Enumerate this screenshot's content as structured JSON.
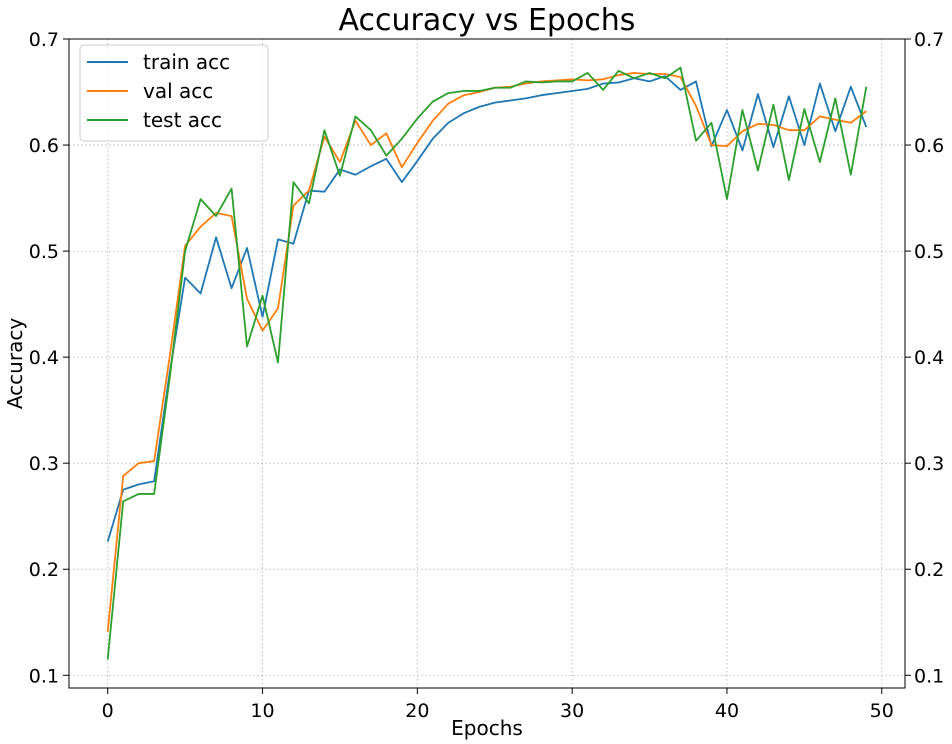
{
  "chart_data": {
    "type": "line",
    "title": "Accuracy vs Epochs",
    "xlabel": "Epochs",
    "ylabel": "Accuracy",
    "xlim": [
      -2.5,
      51.5
    ],
    "ylim": [
      0.088,
      0.7
    ],
    "xticks": [
      0,
      10,
      20,
      30,
      40,
      50
    ],
    "yticks": [
      0.1,
      0.2,
      0.3,
      0.4,
      0.5,
      0.6,
      0.7
    ],
    "xtick_labels": [
      "0",
      "10",
      "20",
      "30",
      "40",
      "50"
    ],
    "ytick_labels": [
      "0.1",
      "0.2",
      "0.3",
      "0.4",
      "0.5",
      "0.6",
      "0.7"
    ],
    "grid": true,
    "legend_position": "top-left",
    "x": [
      0,
      1,
      2,
      3,
      4,
      5,
      6,
      7,
      8,
      9,
      10,
      11,
      12,
      13,
      14,
      15,
      16,
      17,
      18,
      19,
      20,
      21,
      22,
      23,
      24,
      25,
      26,
      27,
      28,
      29,
      30,
      31,
      32,
      33,
      34,
      35,
      36,
      37,
      38,
      39,
      40,
      41,
      42,
      43,
      44,
      45,
      46,
      47,
      48,
      49
    ],
    "series": [
      {
        "name": "train acc",
        "color": "#1f77b4",
        "values": [
          0.226,
          0.275,
          0.28,
          0.283,
          0.385,
          0.475,
          0.46,
          0.513,
          0.465,
          0.503,
          0.438,
          0.511,
          0.507,
          0.557,
          0.556,
          0.577,
          0.572,
          0.58,
          0.587,
          0.565,
          0.585,
          0.606,
          0.621,
          0.63,
          0.636,
          0.64,
          0.642,
          0.644,
          0.647,
          0.649,
          0.651,
          0.653,
          0.658,
          0.659,
          0.663,
          0.66,
          0.665,
          0.652,
          0.66,
          0.599,
          0.633,
          0.595,
          0.648,
          0.598,
          0.646,
          0.6,
          0.658,
          0.613,
          0.655,
          0.617
        ]
      },
      {
        "name": "val acc",
        "color": "#ff7f0e",
        "values": [
          0.141,
          0.288,
          0.3,
          0.302,
          0.4,
          0.505,
          0.523,
          0.536,
          0.533,
          0.455,
          0.425,
          0.446,
          0.543,
          0.557,
          0.608,
          0.584,
          0.623,
          0.6,
          0.611,
          0.579,
          0.602,
          0.623,
          0.639,
          0.647,
          0.65,
          0.654,
          0.655,
          0.658,
          0.66,
          0.661,
          0.662,
          0.661,
          0.662,
          0.666,
          0.668,
          0.667,
          0.667,
          0.664,
          0.637,
          0.6,
          0.599,
          0.613,
          0.62,
          0.619,
          0.614,
          0.614,
          0.627,
          0.624,
          0.621,
          0.632
        ]
      },
      {
        "name": "test acc",
        "color": "#2ca02c",
        "values": [
          0.115,
          0.264,
          0.271,
          0.271,
          0.38,
          0.5,
          0.549,
          0.533,
          0.559,
          0.41,
          0.458,
          0.395,
          0.565,
          0.545,
          0.614,
          0.571,
          0.627,
          0.614,
          0.59,
          0.606,
          0.625,
          0.641,
          0.649,
          0.651,
          0.651,
          0.654,
          0.654,
          0.66,
          0.659,
          0.66,
          0.66,
          0.668,
          0.652,
          0.67,
          0.663,
          0.668,
          0.663,
          0.673,
          0.604,
          0.621,
          0.549,
          0.633,
          0.576,
          0.638,
          0.567,
          0.634,
          0.584,
          0.644,
          0.572,
          0.655
        ]
      }
    ]
  }
}
